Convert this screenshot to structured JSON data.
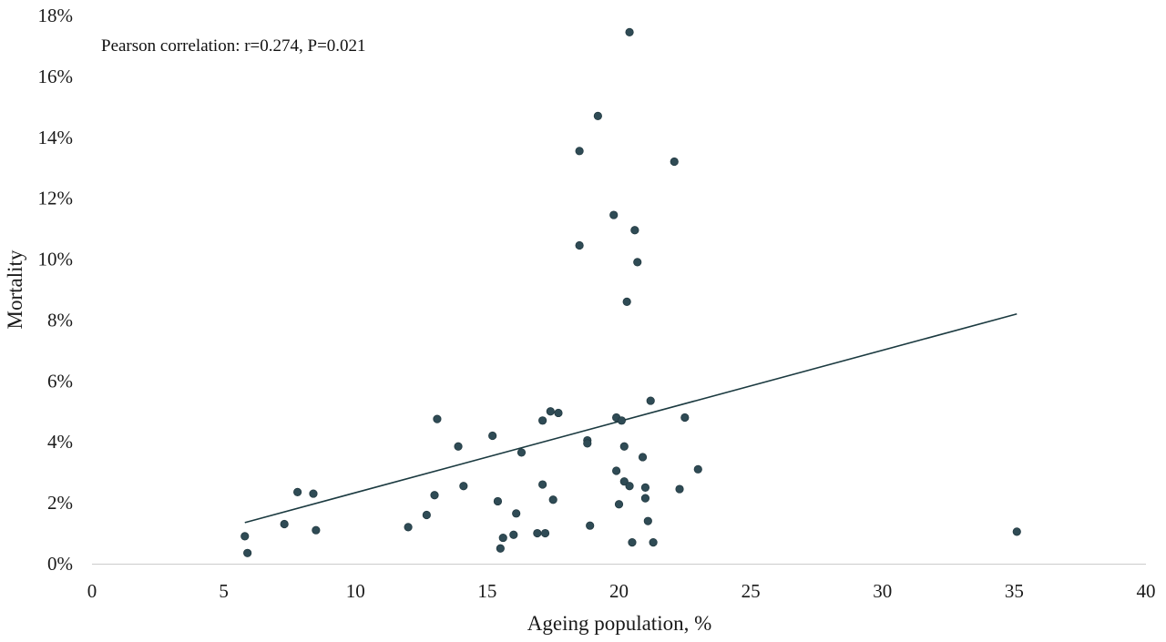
{
  "chart_data": {
    "type": "scatter",
    "title": "",
    "annotation": "Pearson correlation: r=0.274, P=0.021",
    "xlabel": "Ageing population, %",
    "ylabel": "Mortality",
    "xlim": [
      0,
      40
    ],
    "ylim": [
      0,
      18
    ],
    "x_ticks": [
      0,
      5,
      10,
      15,
      20,
      25,
      30,
      35,
      40
    ],
    "y_ticks": [
      0,
      2,
      4,
      6,
      8,
      10,
      12,
      14,
      16,
      18
    ],
    "x_tick_labels": [
      "0",
      "5",
      "10",
      "15",
      "20",
      "25",
      "30",
      "35",
      "40"
    ],
    "y_tick_labels": [
      "0%",
      "2%",
      "4%",
      "6%",
      "8%",
      "10%",
      "12%",
      "14%",
      "16%",
      "18%"
    ],
    "grid": false,
    "colors": {
      "point": "#2f4b55",
      "trendline": "#1b3a40",
      "axis": "#cccccc"
    },
    "trendline": {
      "x": [
        5.8,
        35.1
      ],
      "y": [
        1.35,
        8.2
      ]
    },
    "points": [
      {
        "x": 5.8,
        "y": 0.9
      },
      {
        "x": 5.9,
        "y": 0.35
      },
      {
        "x": 7.3,
        "y": 1.3
      },
      {
        "x": 7.8,
        "y": 2.35
      },
      {
        "x": 8.4,
        "y": 2.3
      },
      {
        "x": 8.5,
        "y": 1.1
      },
      {
        "x": 12.0,
        "y": 1.2
      },
      {
        "x": 12.7,
        "y": 1.6
      },
      {
        "x": 13.0,
        "y": 2.25
      },
      {
        "x": 13.1,
        "y": 4.75
      },
      {
        "x": 13.9,
        "y": 3.85
      },
      {
        "x": 14.1,
        "y": 2.55
      },
      {
        "x": 15.2,
        "y": 4.2
      },
      {
        "x": 15.4,
        "y": 2.05
      },
      {
        "x": 15.5,
        "y": 0.5
      },
      {
        "x": 15.6,
        "y": 0.85
      },
      {
        "x": 16.0,
        "y": 0.95
      },
      {
        "x": 16.1,
        "y": 1.65
      },
      {
        "x": 16.3,
        "y": 3.65
      },
      {
        "x": 16.9,
        "y": 1.0
      },
      {
        "x": 17.1,
        "y": 2.6
      },
      {
        "x": 17.1,
        "y": 4.7
      },
      {
        "x": 17.2,
        "y": 1.0
      },
      {
        "x": 17.4,
        "y": 5.0
      },
      {
        "x": 17.5,
        "y": 2.1
      },
      {
        "x": 17.7,
        "y": 4.95
      },
      {
        "x": 18.5,
        "y": 13.55
      },
      {
        "x": 18.5,
        "y": 10.45
      },
      {
        "x": 18.8,
        "y": 4.05
      },
      {
        "x": 18.8,
        "y": 3.95
      },
      {
        "x": 18.9,
        "y": 1.25
      },
      {
        "x": 19.2,
        "y": 14.7
      },
      {
        "x": 19.8,
        "y": 11.45
      },
      {
        "x": 19.9,
        "y": 3.05
      },
      {
        "x": 19.9,
        "y": 4.8
      },
      {
        "x": 20.0,
        "y": 1.95
      },
      {
        "x": 20.1,
        "y": 4.7
      },
      {
        "x": 20.2,
        "y": 2.7
      },
      {
        "x": 20.2,
        "y": 3.85
      },
      {
        "x": 20.3,
        "y": 8.6
      },
      {
        "x": 20.4,
        "y": 17.45
      },
      {
        "x": 20.4,
        "y": 2.55
      },
      {
        "x": 20.5,
        "y": 0.7
      },
      {
        "x": 20.6,
        "y": 10.95
      },
      {
        "x": 20.7,
        "y": 9.9
      },
      {
        "x": 20.9,
        "y": 3.5
      },
      {
        "x": 21.0,
        "y": 2.5
      },
      {
        "x": 21.0,
        "y": 2.15
      },
      {
        "x": 21.1,
        "y": 1.4
      },
      {
        "x": 21.2,
        "y": 5.35
      },
      {
        "x": 21.3,
        "y": 0.7
      },
      {
        "x": 22.1,
        "y": 13.2
      },
      {
        "x": 22.3,
        "y": 2.45
      },
      {
        "x": 22.5,
        "y": 4.8
      },
      {
        "x": 23.0,
        "y": 3.1
      },
      {
        "x": 35.1,
        "y": 1.05
      }
    ]
  }
}
